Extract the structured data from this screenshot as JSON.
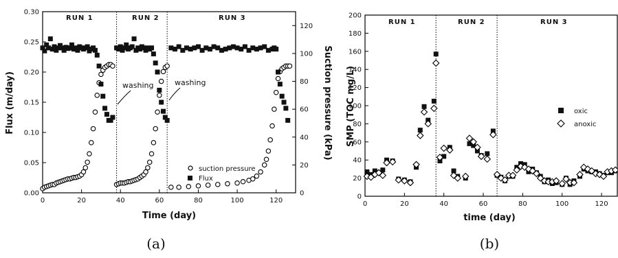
{
  "chart_data": [
    {
      "type": "scatter",
      "panel": "(a)",
      "xlabel": "Time (day)",
      "ylabel": "Flux (m/day)",
      "y2label": "Suction pressure (kPa)",
      "xlim": [
        0,
        130
      ],
      "ylim": [
        0,
        0.3
      ],
      "y2lim": [
        0,
        130
      ],
      "xticks": [
        "0",
        "20",
        "40",
        "60",
        "80",
        "100",
        "120"
      ],
      "yticks": [
        "0.00",
        "0.05",
        "0.10",
        "0.15",
        "0.20",
        "0.25",
        "0.30"
      ],
      "y2ticks": [
        "0",
        "20",
        "40",
        "60",
        "80",
        "100",
        "120"
      ],
      "runs": [
        "RUN 1",
        "RUN 2",
        "RUN 3"
      ],
      "run_boundaries": [
        38,
        64
      ],
      "annotations": [
        "washing",
        "washing"
      ],
      "legend": [
        "suction pressure",
        "Flux"
      ],
      "series": [
        {
          "name": "suction pressure",
          "axis": "y2",
          "marker": "open-circle",
          "x": [
            0,
            1,
            2,
            3,
            4,
            5,
            6,
            7,
            8,
            9,
            10,
            11,
            12,
            13,
            14,
            15,
            16,
            17,
            18,
            19,
            20,
            21,
            22,
            23,
            24,
            25,
            26,
            27,
            28,
            29,
            30,
            31,
            32,
            33,
            34,
            35,
            36,
            38,
            39,
            40,
            41,
            42,
            43,
            44,
            45,
            46,
            47,
            48,
            49,
            50,
            51,
            52,
            53,
            54,
            55,
            56,
            57,
            58,
            59,
            60,
            61,
            62,
            63,
            64,
            66,
            70,
            75,
            80,
            85,
            90,
            95,
            100,
            103,
            106,
            108,
            110,
            112,
            114,
            115,
            116,
            117,
            118,
            119,
            120,
            121,
            122,
            123,
            124,
            125,
            126,
            127
          ],
          "y": [
            3,
            4,
            4.5,
            5,
            5.5,
            6,
            6,
            7,
            7.5,
            8,
            8.5,
            9,
            9.5,
            10,
            10,
            10.5,
            11,
            11,
            11.5,
            12,
            13,
            15,
            18,
            22,
            28,
            36,
            46,
            58,
            70,
            79,
            85,
            88,
            90,
            91,
            92,
            92,
            91,
            6,
            6.5,
            7,
            7,
            7,
            7.5,
            8,
            8,
            8.5,
            9,
            9.5,
            10,
            11,
            12,
            13,
            15,
            18,
            22,
            28,
            36,
            46,
            58,
            70,
            80,
            87,
            90,
            91,
            4,
            4,
            4.5,
            5,
            5.5,
            6,
            6.5,
            7,
            8,
            9,
            10,
            12,
            15,
            20,
            24,
            30,
            38,
            48,
            60,
            72,
            82,
            87,
            89,
            90,
            91,
            91,
            91
          ]
        },
        {
          "name": "Flux",
          "axis": "y",
          "marker": "filled-square",
          "x": [
            0,
            1,
            2,
            3,
            4,
            5,
            6,
            7,
            8,
            9,
            10,
            11,
            12,
            13,
            14,
            15,
            16,
            17,
            18,
            19,
            20,
            21,
            22,
            23,
            24,
            25,
            26,
            27,
            28,
            29,
            30,
            31,
            32,
            33,
            34,
            35,
            36,
            38,
            39,
            40,
            41,
            42,
            43,
            44,
            45,
            46,
            47,
            48,
            49,
            50,
            51,
            52,
            53,
            54,
            55,
            56,
            57,
            58,
            59,
            60,
            61,
            62,
            63,
            64,
            66,
            68,
            70,
            72,
            74,
            76,
            78,
            80,
            82,
            84,
            86,
            88,
            90,
            92,
            94,
            96,
            98,
            100,
            102,
            104,
            106,
            108,
            110,
            112,
            114,
            116,
            118,
            119,
            120,
            121,
            122,
            123,
            124,
            125,
            126
          ],
          "y": [
            0.24,
            0.235,
            0.245,
            0.24,
            0.255,
            0.238,
            0.242,
            0.236,
            0.24,
            0.244,
            0.24,
            0.236,
            0.241,
            0.239,
            0.24,
            0.245,
            0.238,
            0.24,
            0.236,
            0.242,
            0.24,
            0.238,
            0.24,
            0.242,
            0.235,
            0.238,
            0.24,
            0.236,
            0.228,
            0.21,
            0.18,
            0.16,
            0.14,
            0.13,
            0.12,
            0.12,
            0.125,
            0.24,
            0.238,
            0.242,
            0.236,
            0.24,
            0.245,
            0.238,
            0.24,
            0.242,
            0.255,
            0.236,
            0.24,
            0.238,
            0.242,
            0.24,
            0.236,
            0.24,
            0.238,
            0.24,
            0.23,
            0.215,
            0.2,
            0.17,
            0.15,
            0.135,
            0.125,
            0.12,
            0.24,
            0.238,
            0.242,
            0.236,
            0.24,
            0.238,
            0.24,
            0.242,
            0.236,
            0.24,
            0.238,
            0.242,
            0.24,
            0.236,
            0.238,
            0.24,
            0.242,
            0.24,
            0.238,
            0.242,
            0.236,
            0.24,
            0.238,
            0.24,
            0.242,
            0.236,
            0.238,
            0.24,
            0.238,
            0.2,
            0.18,
            0.16,
            0.15,
            0.14,
            0.12
          ]
        }
      ]
    },
    {
      "type": "scatter",
      "panel": "(b)",
      "xlabel": "time (day)",
      "ylabel": "SMP (TOC mg/L)",
      "xlim": [
        0,
        128
      ],
      "ylim": [
        0,
        200
      ],
      "xticks": [
        "0",
        "20",
        "40",
        "60",
        "80",
        "100",
        "120"
      ],
      "yticks": [
        "0",
        "20",
        "40",
        "60",
        "80",
        "100",
        "120",
        "140",
        "160",
        "180",
        "200"
      ],
      "runs": [
        "RUN 1",
        "RUN 2",
        "RUN 3"
      ],
      "run_boundaries": [
        36,
        67
      ],
      "legend": [
        "oxic",
        "anoxic"
      ],
      "series": [
        {
          "name": "oxic",
          "marker": "filled-square",
          "x": [
            1,
            3,
            5,
            7,
            9,
            11,
            14,
            17,
            20,
            23,
            26,
            28,
            30,
            32,
            35,
            36,
            38,
            40,
            43,
            45,
            47,
            51,
            53,
            55,
            57,
            59,
            62,
            65,
            67,
            69,
            71,
            73,
            75,
            77,
            79,
            81,
            83,
            85,
            87,
            89,
            91,
            93,
            95,
            97,
            100,
            102,
            104,
            106,
            109,
            111,
            113,
            115,
            117,
            119,
            121,
            123,
            125,
            127
          ],
          "y": [
            27,
            24,
            28,
            26,
            29,
            40,
            39,
            19,
            18,
            16,
            32,
            73,
            99,
            84,
            105,
            157,
            39,
            44,
            54,
            28,
            22,
            20,
            58,
            56,
            50,
            45,
            47,
            72,
            23,
            21,
            17,
            22,
            22,
            32,
            36,
            35,
            27,
            30,
            26,
            22,
            16,
            18,
            14,
            15,
            13,
            20,
            13,
            17,
            22,
            30,
            28,
            27,
            27,
            25,
            23,
            26,
            26,
            28
          ],
          "note": "approximate"
        },
        {
          "name": "anoxic",
          "marker": "open-diamond",
          "x": [
            1,
            3,
            5,
            7,
            9,
            11,
            14,
            17,
            20,
            23,
            26,
            28,
            30,
            32,
            35,
            36,
            38,
            40,
            43,
            45,
            47,
            51,
            53,
            55,
            57,
            59,
            62,
            65,
            67,
            69,
            71,
            73,
            75,
            77,
            79,
            81,
            83,
            85,
            87,
            89,
            91,
            93,
            95,
            97,
            100,
            102,
            104,
            106,
            109,
            111,
            113,
            115,
            117,
            119,
            121,
            123,
            125,
            127
          ],
          "y": [
            22,
            21,
            24,
            26,
            23,
            37,
            38,
            18,
            17,
            15,
            35,
            67,
            93,
            80,
            97,
            147,
            43,
            53,
            51,
            23,
            20,
            22,
            64,
            60,
            54,
            44,
            41,
            68,
            24,
            20,
            18,
            23,
            23,
            29,
            33,
            32,
            30,
            28,
            25,
            20,
            17,
            16,
            16,
            17,
            14,
            19,
            15,
            15,
            24,
            32,
            30,
            28,
            25,
            24,
            22,
            27,
            28,
            29
          ]
        }
      ]
    }
  ],
  "labels": {
    "a": {
      "ylabel": "Flux (m/day)",
      "y2label": "Suction pressure (kPa)",
      "xlabel": "Time (day)",
      "run1": "RUN 1",
      "run2": "RUN 2",
      "run3": "RUN 3",
      "wash1": "washing",
      "wash2": "washing",
      "leg1": "suction pressure",
      "leg2": "Flux",
      "caption": "(a)"
    },
    "b": {
      "ylabel": "SMP (TOC mg/L)",
      "xlabel": "time (day)",
      "run1": "RUN 1",
      "run2": "RUN 2",
      "run3": "RUN 3",
      "leg1": "oxic",
      "leg2": "anoxic",
      "caption": "(b)"
    }
  }
}
